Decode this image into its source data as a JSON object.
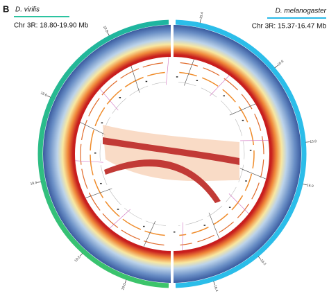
{
  "panel": "B",
  "left": {
    "species": "D. virilis",
    "region": "Chr 3R: 18.80-19.90 Mb",
    "ticks": [
      "19.8",
      "19.6",
      "19.4",
      "19.2",
      "19.0"
    ]
  },
  "right": {
    "species": "D. melanogaster",
    "region": "Chr 3R: 15.37-16.47 Mb",
    "ticks": [
      "15.4",
      "15.6",
      "15.8",
      "16.0",
      "16.2",
      "16.4"
    ]
  }
}
